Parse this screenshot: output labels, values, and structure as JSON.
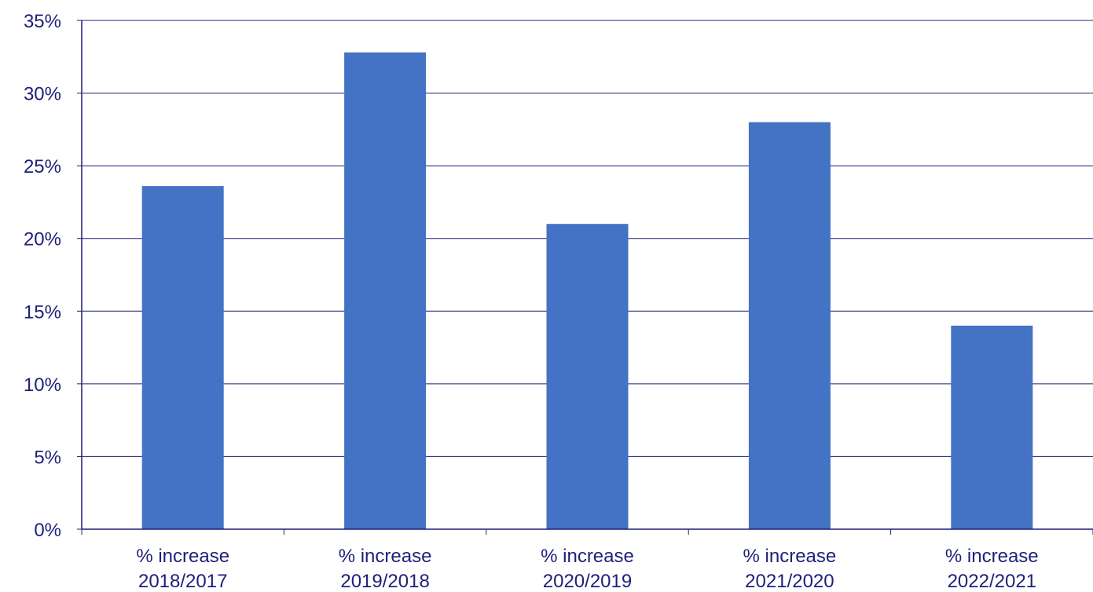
{
  "chart_data": {
    "type": "bar",
    "categories": [
      [
        "% increase",
        "2018/2017"
      ],
      [
        "% increase",
        "2019/2018"
      ],
      [
        "% increase",
        "2020/2019"
      ],
      [
        "% increase",
        "2021/2020"
      ],
      [
        "% increase",
        "2022/2021"
      ]
    ],
    "values": [
      23.6,
      32.8,
      21.0,
      28.0,
      14.0
    ],
    "ylim": [
      0,
      35
    ],
    "y_ticks": [
      0,
      5,
      10,
      15,
      20,
      25,
      30,
      35
    ],
    "y_tick_labels": [
      "0%",
      "5%",
      "10%",
      "15%",
      "20%",
      "25%",
      "30%",
      "35%"
    ],
    "grid": true,
    "legend": "none",
    "bar_color": "#4472c4",
    "axis_color": "#1f1f7a",
    "grid_color": "#1f1f7a",
    "text_color": "#1f1f7a"
  }
}
